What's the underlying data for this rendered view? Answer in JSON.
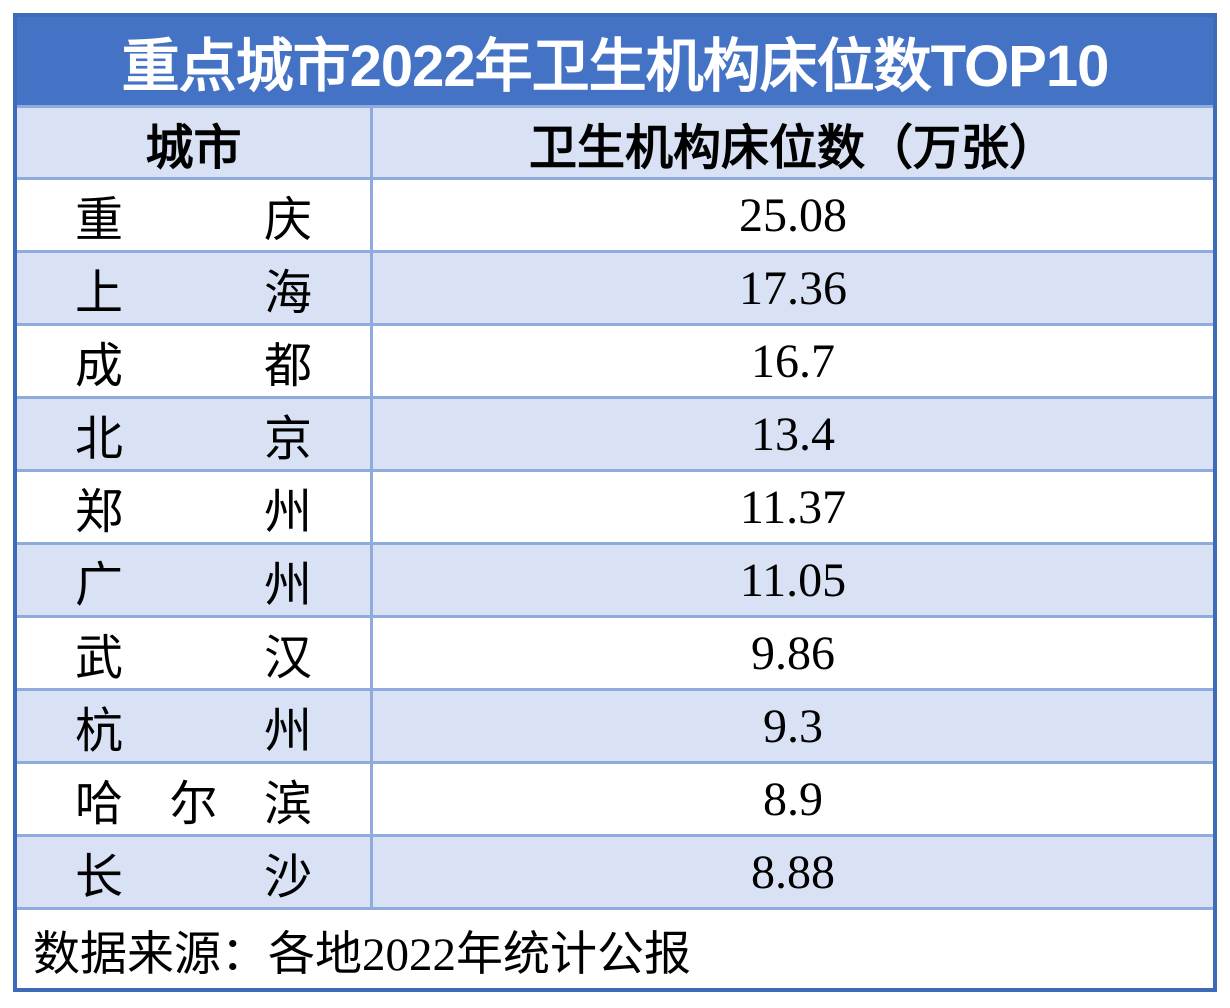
{
  "title": "重点城市2022年卫生机构床位数TOP10",
  "table": {
    "columns": [
      "城市",
      "卫生机构床位数（万张）"
    ],
    "rows": [
      {
        "city": "重庆",
        "value": "25.08"
      },
      {
        "city": "上海",
        "value": "17.36"
      },
      {
        "city": "成都",
        "value": "16.7"
      },
      {
        "city": "北京",
        "value": "13.4"
      },
      {
        "city": "郑州",
        "value": "11.37"
      },
      {
        "city": "广州",
        "value": "11.05"
      },
      {
        "city": "武汉",
        "value": "9.86"
      },
      {
        "city": "杭州",
        "value": "9.3"
      },
      {
        "city": "哈尔滨",
        "value": "8.9"
      },
      {
        "city": "长沙",
        "value": "8.88"
      }
    ],
    "source_note": "数据来源：各地2022年统计公报"
  },
  "colors": {
    "title_bar": "#4472c4",
    "row_alt": "#d9e1f5",
    "gridline": "#8faadc",
    "outer_border": "#3e6bb7",
    "title_text": "#ffffff",
    "body_text": "#000000"
  },
  "chart_data": {
    "type": "table",
    "title": "重点城市2022年卫生机构床位数TOP10",
    "columns": [
      "城市",
      "卫生机构床位数（万张）"
    ],
    "categories": [
      "重庆",
      "上海",
      "成都",
      "北京",
      "郑州",
      "广州",
      "武汉",
      "杭州",
      "哈尔滨",
      "长沙"
    ],
    "values": [
      25.08,
      17.36,
      16.7,
      13.4,
      11.37,
      11.05,
      9.86,
      9.3,
      8.9,
      8.88
    ],
    "unit": "万张",
    "source": "数据来源：各地2022年统计公报"
  }
}
